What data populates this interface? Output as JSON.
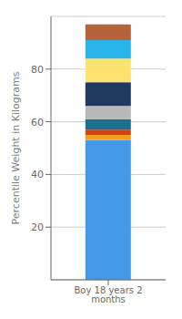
{
  "chart_data": {
    "type": "bar",
    "stacked": true,
    "categories": [
      "Boy 18 years 2 months"
    ],
    "series": [
      {
        "color": "#4199e8",
        "values": [
          53
        ]
      },
      {
        "color": "#f0a020",
        "values": [
          2
        ]
      },
      {
        "color": "#d94010",
        "values": [
          2
        ]
      },
      {
        "color": "#1a7090",
        "values": [
          4
        ]
      },
      {
        "color": "#b8b8b8",
        "values": [
          5
        ]
      },
      {
        "color": "#1f3a5f",
        "values": [
          9
        ]
      },
      {
        "color": "#fce270",
        "values": [
          9
        ]
      },
      {
        "color": "#29b5e8",
        "values": [
          7
        ]
      },
      {
        "color": "#b5633a",
        "values": [
          6
        ]
      }
    ],
    "ylabel": "Percentile Weight in Kilograms",
    "ylim": [
      0,
      100
    ],
    "yticks": [
      20,
      40,
      60,
      80
    ],
    "grid": true
  }
}
